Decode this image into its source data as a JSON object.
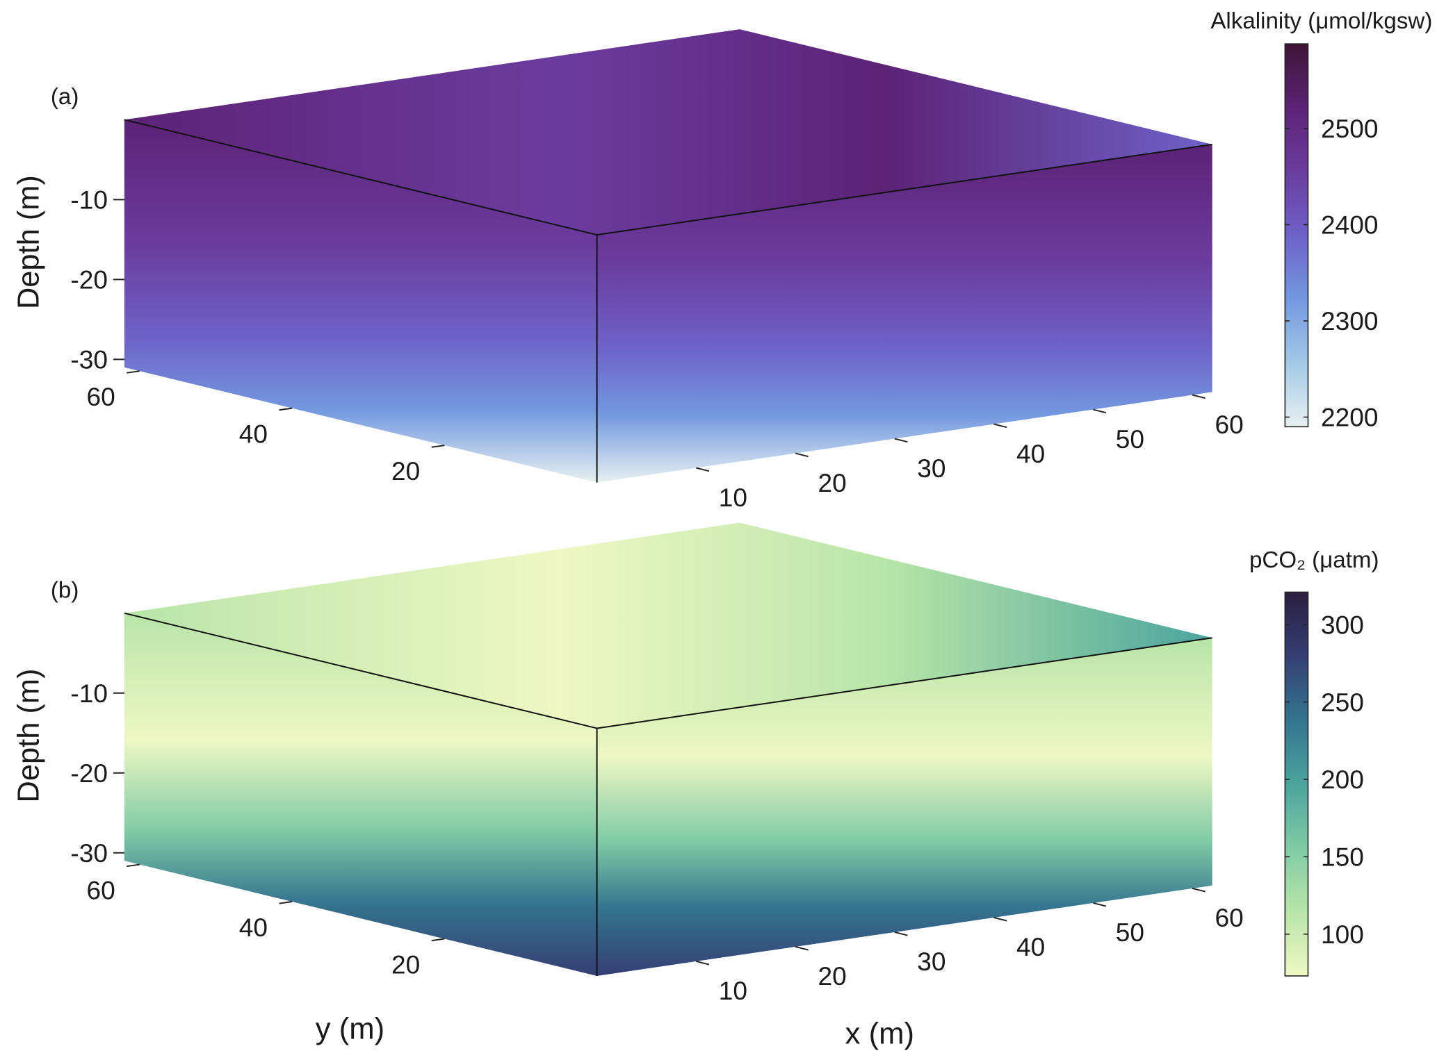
{
  "chart_data": [
    {
      "type": "volume",
      "panel_label": "(a)",
      "zlabel": "Depth (m)",
      "xlim": [
        0,
        62
      ],
      "xticks": [
        10,
        20,
        30,
        40,
        50,
        60
      ],
      "ylim": [
        0,
        62
      ],
      "yticks": [
        20,
        40,
        60
      ],
      "zlim": [
        -31,
        0
      ],
      "zticks": [
        -10,
        -20,
        -30
      ],
      "colorbar_label": "Alkalinity (μmol/kgsw)",
      "clim": [
        2190,
        2588
      ],
      "cticks": [
        2200,
        2300,
        2400,
        2500
      ],
      "colormap": [
        "#e6f0f1",
        "#a3c9e6",
        "#7398e0",
        "#6e62c8",
        "#6b3c9f",
        "#5c2376",
        "#3d1536"
      ]
    },
    {
      "type": "volume",
      "panel_label": "(b)",
      "zlabel": "Depth (m)",
      "xlabel": "x (m)",
      "ylabel": "y (m)",
      "xlim": [
        0,
        62
      ],
      "xticks": [
        10,
        20,
        30,
        40,
        50,
        60
      ],
      "ylim": [
        0,
        62
      ],
      "yticks": [
        20,
        40,
        60
      ],
      "zlim": [
        -31,
        0
      ],
      "zticks": [
        -10,
        -20,
        -30
      ],
      "colorbar_label": "pCO₂ (μatm)",
      "clim": [
        73,
        321
      ],
      "cticks": [
        100,
        150,
        200,
        250,
        300
      ],
      "colormap": [
        "#eff7c4",
        "#b8e5a8",
        "#80cba5",
        "#4aa49d",
        "#34748f",
        "#353f74",
        "#2b1e3f"
      ]
    }
  ]
}
